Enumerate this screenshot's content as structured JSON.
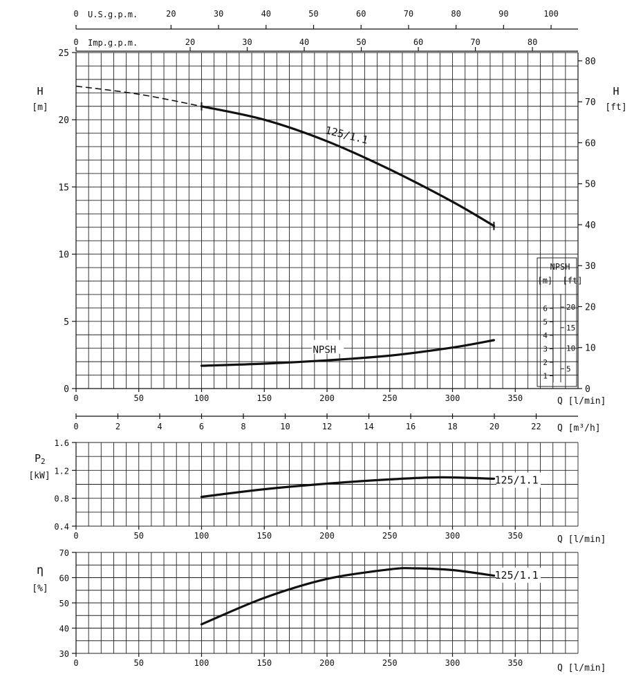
{
  "chart_data": [
    {
      "id": "head",
      "type": "line",
      "top_axes": [
        {
          "label": "U.S.g.p.m.",
          "ticks": [
            "0",
            "20",
            "30",
            "40",
            "50",
            "60",
            "70",
            "80",
            "90",
            "100"
          ],
          "tick_values": [
            0,
            20,
            30,
            40,
            50,
            60,
            70,
            80,
            90,
            100
          ]
        },
        {
          "label": "Imp.g.p.m.",
          "ticks": [
            "0",
            "20",
            "30",
            "40",
            "50",
            "60",
            "70",
            "80"
          ],
          "tick_values": [
            0,
            20,
            30,
            40,
            50,
            60,
            70,
            80
          ]
        }
      ],
      "xlabel": "Q [l/min]",
      "x_ticks": [
        "0",
        "50",
        "100",
        "150",
        "200",
        "250",
        "300",
        "350"
      ],
      "xlim": [
        0,
        400
      ],
      "ylabel_left": {
        "symbol": "H",
        "unit": "[m]"
      },
      "y_ticks_left": [
        "0",
        "5",
        "10",
        "15",
        "20",
        "25"
      ],
      "ylim": [
        0,
        25
      ],
      "ylabel_right": {
        "symbol": "H",
        "unit": "[ft]"
      },
      "y_ticks_right": [
        "0",
        "10",
        "20",
        "30",
        "40",
        "50",
        "60",
        "70",
        "80"
      ],
      "y_right_lim_ft": [
        0,
        82.02
      ],
      "grid": true,
      "series": [
        {
          "name": "125/1.1",
          "style": "solid",
          "x": [
            100,
            150,
            200,
            250,
            300,
            333
          ],
          "y": [
            21.0,
            20.0,
            18.4,
            16.3,
            13.9,
            12.1
          ]
        },
        {
          "name": "",
          "style": "dashed",
          "x": [
            0,
            50,
            100
          ],
          "y": [
            22.5,
            21.9,
            21.0
          ]
        },
        {
          "name": "NPSH",
          "style": "solid",
          "x": [
            100,
            150,
            200,
            250,
            300,
            333
          ],
          "y": [
            1.7,
            1.85,
            2.1,
            2.45,
            3.05,
            3.6
          ]
        }
      ],
      "npsh_scale": {
        "title": "NPSH",
        "units": "[m]  [ft]",
        "m_ticks": [
          "1",
          "2",
          "3",
          "4",
          "5",
          "6"
        ],
        "ft_ticks": [
          "5",
          "10",
          "15",
          "20"
        ]
      }
    },
    {
      "id": "flow_m3h",
      "type": "axis",
      "xlabel": "Q [m³/h]",
      "x_ticks": [
        "0",
        "2",
        "4",
        "6",
        "8",
        "10",
        "12",
        "14",
        "16",
        "18",
        "20",
        "22"
      ],
      "xlim_m3h": [
        0,
        24
      ]
    },
    {
      "id": "power",
      "type": "line",
      "ylabel": {
        "symbol": "P",
        "subscript": "2",
        "unit": "[kW]"
      },
      "y_ticks": [
        "0.4",
        "0.8",
        "1.2",
        "1.6"
      ],
      "ylim": [
        0.4,
        1.6
      ],
      "xlabel": "Q [l/min]",
      "x_ticks": [
        "0",
        "50",
        "100",
        "150",
        "200",
        "250",
        "300",
        "350"
      ],
      "xlim": [
        0,
        400
      ],
      "grid": true,
      "series": [
        {
          "name": "125/1.1",
          "x": [
            100,
            150,
            200,
            250,
            290,
            333
          ],
          "y": [
            0.82,
            0.93,
            1.01,
            1.07,
            1.1,
            1.08
          ]
        }
      ]
    },
    {
      "id": "efficiency",
      "type": "line",
      "ylabel": {
        "symbol": "η",
        "unit": "[%]"
      },
      "y_ticks": [
        "30",
        "40",
        "50",
        "60",
        "70"
      ],
      "ylim": [
        30,
        70
      ],
      "xlabel": "Q [l/min]",
      "x_ticks": [
        "0",
        "50",
        "100",
        "150",
        "200",
        "250",
        "300",
        "350"
      ],
      "xlim": [
        0,
        400
      ],
      "grid": true,
      "series": [
        {
          "name": "125/1.1",
          "x": [
            100,
            150,
            200,
            250,
            270,
            300,
            333
          ],
          "y": [
            41.5,
            52.0,
            59.5,
            63.3,
            63.7,
            63.0,
            60.8
          ]
        }
      ]
    }
  ]
}
